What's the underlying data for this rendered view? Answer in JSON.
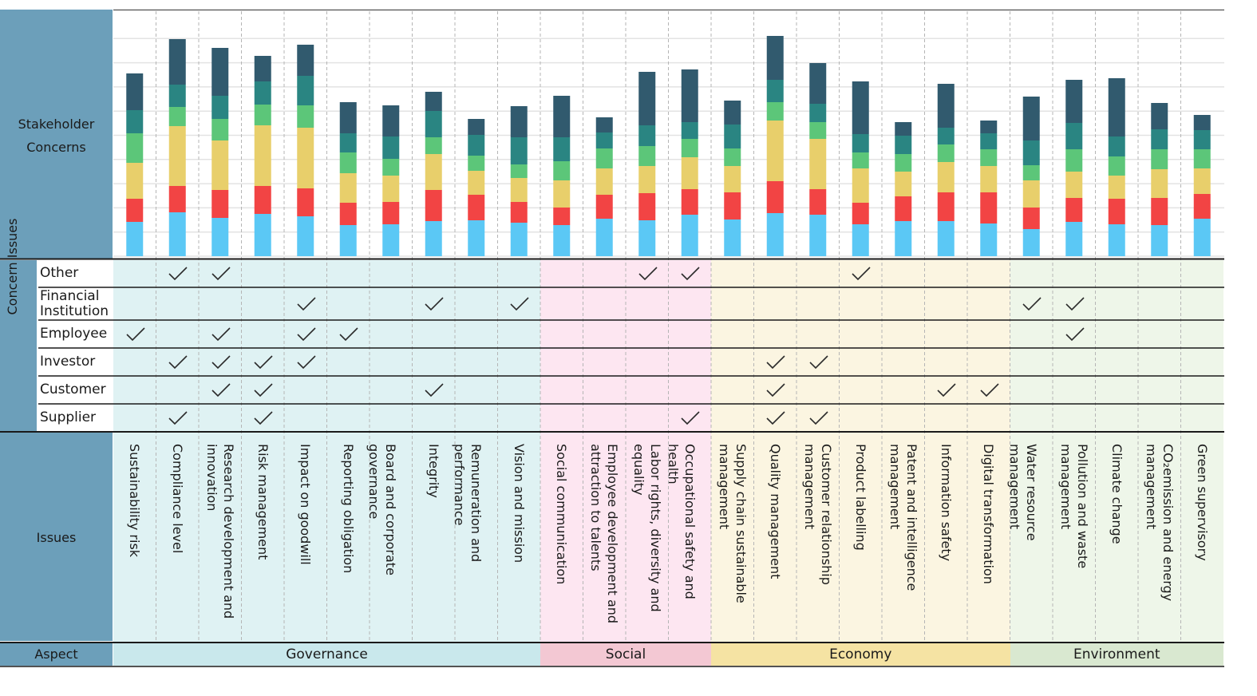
{
  "labels": {
    "stakeholder_concerns": [
      "Stakeholder",
      "Concerns"
    ],
    "concern_issues": "Concern Issues",
    "issues": "Issues",
    "aspect": "Aspect"
  },
  "stakeholders": [
    "Other",
    "Financial Institution",
    "Employee",
    "Investor",
    "Customer",
    "Supplier"
  ],
  "stakeholder_lines": [
    [
      "Other"
    ],
    [
      "Financial",
      "Institution"
    ],
    [
      "Employee"
    ],
    [
      "Investor"
    ],
    [
      "Customer"
    ],
    [
      "Supplier"
    ]
  ],
  "aspects": [
    {
      "name": "Governance",
      "from": 0,
      "to": 9,
      "band": "#dff2f3",
      "header": "#c9e8ec"
    },
    {
      "name": "Social",
      "from": 10,
      "to": 13,
      "band": "#fde6f1",
      "header": "#f3c8d3"
    },
    {
      "name": "Economy",
      "from": 14,
      "to": 20,
      "band": "#fbf5e1",
      "header": "#f5e3a3"
    },
    {
      "name": "Environment",
      "from": 21,
      "to": 25,
      "band": "#eef6e9",
      "header": "#d9e8d0"
    }
  ],
  "issue_lines": [
    [
      "Sustainability risk"
    ],
    [
      "Compliance level"
    ],
    [
      "Research development and",
      "innovation"
    ],
    [
      "Risk management"
    ],
    [
      "Impact on goodwill"
    ],
    [
      "Reporting obligation"
    ],
    [
      "Board and corporate governance"
    ],
    [
      "Integrity"
    ],
    [
      "Remuneration and performance"
    ],
    [
      "Vision and mission"
    ],
    [
      "Social communication"
    ],
    [
      "Employee development and",
      "attraction to talents"
    ],
    [
      "Labor rights, diversity and",
      "equality"
    ],
    [
      "Occupational safety and health"
    ],
    [
      "Supply chain sustainable",
      "management"
    ],
    [
      "Quality management"
    ],
    [
      "Customer relationship",
      "management"
    ],
    [
      "Product labelling"
    ],
    [
      "Patent and intelligence",
      "management"
    ],
    [
      "Information safety"
    ],
    [
      "Digital transformation"
    ],
    [
      "Water resource management"
    ],
    [
      "Pollution and waste",
      "management"
    ],
    [
      "Climate change"
    ],
    [
      "CO₂emission and energy",
      "management"
    ],
    [
      "Green supervisory"
    ]
  ],
  "checks": [
    [
      1,
      2,
      12,
      13,
      17
    ],
    [
      4,
      7,
      9,
      21,
      22
    ],
    [
      0,
      2,
      4,
      5,
      22
    ],
    [
      1,
      2,
      3,
      4,
      15,
      16
    ],
    [
      2,
      3,
      7,
      15,
      19,
      20
    ],
    [
      1,
      3,
      13,
      15,
      16
    ]
  ],
  "chart_data": {
    "type": "bar",
    "stacked": true,
    "categories": [
      "Sustainability risk",
      "Compliance level",
      "Research development and innovation",
      "Risk management",
      "Impact on goodwill",
      "Reporting obligation",
      "Board and corporate governance",
      "Integrity",
      "Remuneration and performance",
      "Vision and mission",
      "Social communication",
      "Employee development and attraction to talents",
      "Labor rights, diversity and equality",
      "Occupational safety and health",
      "Supply chain sustainable management",
      "Quality management",
      "Customer relationship management",
      "Product labelling",
      "Patent and intelligence management",
      "Information safety",
      "Digital transformation",
      "Water resource management",
      "Pollution and waste management",
      "Climate change",
      "CO₂emission and energy management",
      "Green supervisory"
    ],
    "series": [
      {
        "color": "#5bc8f5",
        "values": [
          43,
          55,
          48,
          53,
          50,
          39,
          40,
          44,
          45,
          42,
          39,
          47,
          45,
          52,
          46,
          54,
          52,
          40,
          44,
          44,
          41,
          34,
          43,
          40,
          39,
          47
        ]
      },
      {
        "color": "#f24444",
        "values": [
          29,
          33,
          35,
          35,
          35,
          28,
          28,
          39,
          32,
          26,
          22,
          30,
          34,
          32,
          34,
          40,
          32,
          27,
          31,
          36,
          39,
          27,
          30,
          32,
          34,
          31
        ]
      },
      {
        "color": "#e8cf6b",
        "values": [
          45,
          75,
          62,
          76,
          76,
          37,
          33,
          45,
          30,
          30,
          34,
          33,
          34,
          40,
          33,
          76,
          63,
          43,
          31,
          38,
          33,
          34,
          33,
          29,
          36,
          32
        ]
      },
      {
        "color": "#5cc679",
        "values": [
          37,
          24,
          27,
          26,
          28,
          26,
          21,
          21,
          19,
          17,
          24,
          25,
          25,
          23,
          22,
          23,
          21,
          20,
          22,
          22,
          21,
          19,
          28,
          24,
          25,
          24
        ]
      },
      {
        "color": "#2a8582",
        "values": [
          29,
          28,
          29,
          29,
          37,
          24,
          28,
          33,
          26,
          34,
          30,
          20,
          26,
          21,
          30,
          28,
          23,
          23,
          23,
          21,
          20,
          31,
          33,
          25,
          25,
          24
        ]
      },
      {
        "color": "#315a6e",
        "values": [
          46,
          57,
          60,
          32,
          39,
          39,
          39,
          24,
          20,
          39,
          52,
          19,
          67,
          66,
          30,
          55,
          51,
          66,
          17,
          55,
          16,
          55,
          54,
          73,
          33,
          19
        ]
      }
    ]
  }
}
